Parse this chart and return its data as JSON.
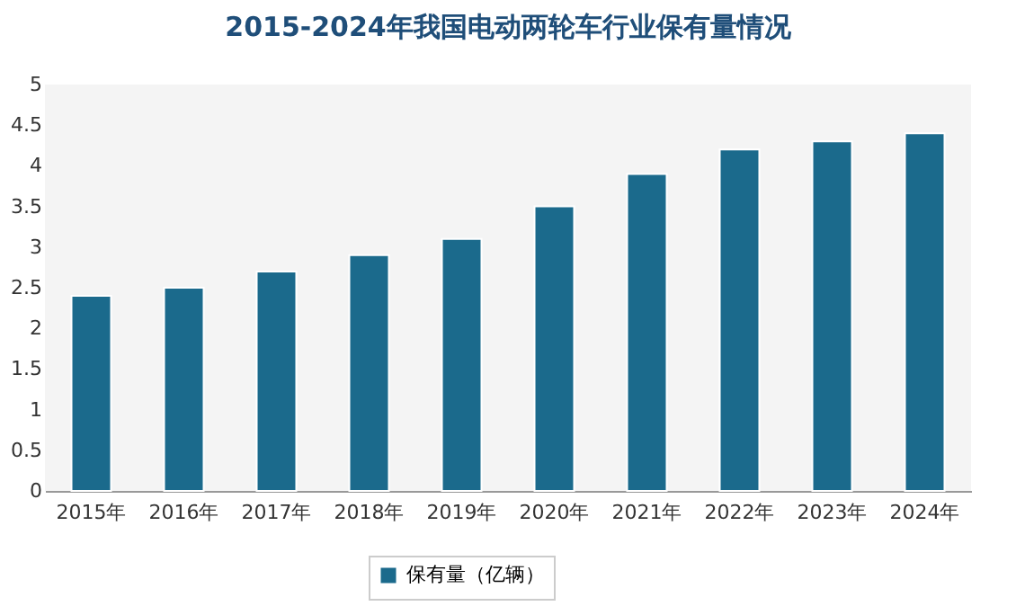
{
  "chart_data": {
    "type": "bar",
    "title": "2015-2024年我国电动两轮车行业保有量情况",
    "categories": [
      "2015年",
      "2016年",
      "2017年",
      "2018年",
      "2019年",
      "2020年",
      "2021年",
      "2022年",
      "2023年",
      "2024年"
    ],
    "series": [
      {
        "name": "保有量（亿辆）",
        "color": "#1b6a8c",
        "values": [
          2.4,
          2.5,
          2.7,
          2.9,
          3.1,
          3.5,
          3.9,
          4.2,
          4.3,
          4.4
        ]
      }
    ],
    "ylim": [
      0,
      5
    ],
    "yticks": [
      0,
      0.5,
      1,
      1.5,
      2,
      2.5,
      3,
      3.5,
      4,
      4.5,
      5
    ],
    "grid": false,
    "legend": "bottom"
  }
}
